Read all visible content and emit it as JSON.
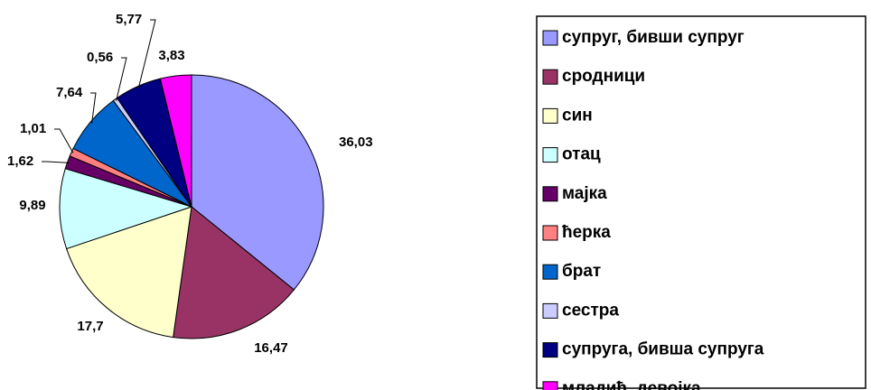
{
  "chart_data": {
    "type": "pie",
    "categories": [
      "супруг, бивши супруг",
      "сродници",
      "син",
      "отац",
      "мајка",
      "ћерка",
      "брат",
      "сестра",
      "супруга, бивша супруга",
      "младић, девојка"
    ],
    "values": [
      36.03,
      16.47,
      17.7,
      9.89,
      1.62,
      1.01,
      7.64,
      0.56,
      5.77,
      3.83
    ],
    "value_labels": [
      "36,03",
      "16,47",
      "17,7",
      "9,89",
      "1,62",
      "1,01",
      "7,64",
      "0,56",
      "5,77",
      "3,83"
    ],
    "colors": [
      "#9999ff",
      "#993366",
      "#ffffcc",
      "#ccffff",
      "#660066",
      "#ff8080",
      "#0066cc",
      "#ccccff",
      "#000080",
      "#ff00ff"
    ],
    "legend": "right"
  }
}
